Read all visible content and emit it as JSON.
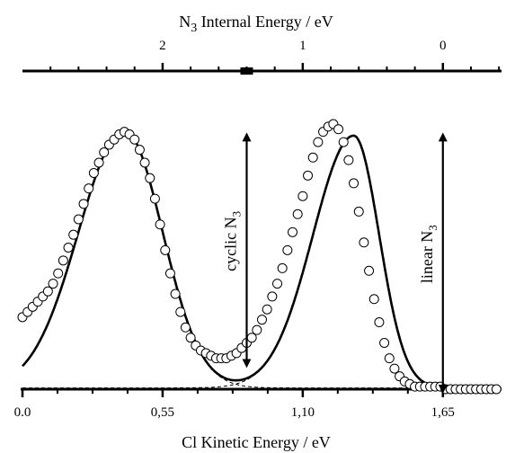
{
  "chart_data": {
    "type": "line",
    "bottom_axis": {
      "label": "Cl Kinetic Energy / eV",
      "range": [
        0,
        1.88
      ],
      "ticks": [
        0,
        0.55,
        1.1,
        1.65
      ],
      "tick_labels": [
        "0.0",
        "0,55",
        "1,10",
        "1,65"
      ],
      "minor_step": 0.1375
    },
    "top_axis": {
      "label_prefix": "N",
      "label_subscript": "3",
      "label_suffix": " Internal Energy / eV",
      "ticks": [
        2,
        1,
        0
      ],
      "tick_labels": [
        "2",
        "1",
        "0"
      ],
      "zero_at_bottom_value": 1.65,
      "slope_per_ev": -0.55
    },
    "marker_bottom_value": 0.88,
    "series": [
      {
        "style": "open-circles",
        "x": [
          0.0,
          0.02,
          0.04,
          0.06,
          0.08,
          0.1,
          0.12,
          0.14,
          0.16,
          0.18,
          0.2,
          0.22,
          0.24,
          0.26,
          0.28,
          0.3,
          0.32,
          0.34,
          0.36,
          0.38,
          0.4,
          0.42,
          0.44,
          0.46,
          0.48,
          0.5,
          0.52,
          0.54,
          0.56,
          0.58,
          0.6,
          0.62,
          0.64,
          0.66,
          0.68,
          0.7,
          0.72,
          0.74,
          0.76,
          0.78,
          0.8,
          0.82,
          0.84,
          0.86,
          0.88,
          0.9,
          0.92,
          0.94,
          0.96,
          0.98,
          1.0,
          1.02,
          1.04,
          1.06,
          1.08,
          1.1,
          1.12,
          1.14,
          1.16,
          1.18,
          1.2,
          1.22,
          1.24,
          1.26,
          1.28,
          1.3,
          1.32,
          1.34,
          1.36,
          1.38,
          1.4,
          1.42,
          1.44,
          1.46,
          1.48,
          1.5,
          1.52,
          1.54,
          1.56,
          1.58,
          1.6,
          1.62,
          1.64,
          1.66,
          1.68,
          1.7,
          1.72,
          1.74,
          1.76,
          1.78,
          1.8,
          1.82,
          1.84,
          1.86
        ],
        "y": [
          0.28,
          0.3,
          0.32,
          0.34,
          0.36,
          0.38,
          0.41,
          0.45,
          0.5,
          0.55,
          0.6,
          0.66,
          0.72,
          0.78,
          0.84,
          0.88,
          0.92,
          0.95,
          0.97,
          0.99,
          1.0,
          0.99,
          0.97,
          0.93,
          0.88,
          0.82,
          0.74,
          0.64,
          0.54,
          0.45,
          0.37,
          0.3,
          0.24,
          0.2,
          0.17,
          0.15,
          0.14,
          0.13,
          0.12,
          0.12,
          0.12,
          0.13,
          0.14,
          0.16,
          0.18,
          0.2,
          0.23,
          0.27,
          0.31,
          0.36,
          0.41,
          0.47,
          0.54,
          0.61,
          0.68,
          0.75,
          0.83,
          0.9,
          0.96,
          1.0,
          1.02,
          1.03,
          1.01,
          0.96,
          0.89,
          0.8,
          0.69,
          0.57,
          0.46,
          0.35,
          0.26,
          0.18,
          0.12,
          0.08,
          0.05,
          0.03,
          0.02,
          0.01,
          0.01,
          0.01,
          0.01,
          0.01,
          0.01,
          0.0,
          0.0,
          0.0,
          0.0,
          0.0,
          0.0,
          0.0,
          0.0,
          0.0,
          0.0,
          0.0
        ]
      }
    ],
    "fit_peaks": [
      {
        "center": 0.4,
        "amplitude": 1.0,
        "sigma_left": 0.18,
        "sigma_right": 0.15
      },
      {
        "center": 1.3,
        "amplitude": 0.98,
        "sigma_left": 0.16,
        "sigma_right": 0.1
      }
    ],
    "fit_baseline": 0.005,
    "arrows": [
      {
        "label_prefix": "cyclic N",
        "label_subscript": "3",
        "x": 0.88,
        "y_top": 0.98,
        "y_bottom": 0.1
      },
      {
        "label_prefix": "linear N",
        "label_subscript": "3",
        "x": 1.65,
        "y_top": 0.98,
        "y_bottom": 0.0
      }
    ],
    "ylim": [
      0,
      1.1
    ],
    "grid": false,
    "legend": "none"
  }
}
